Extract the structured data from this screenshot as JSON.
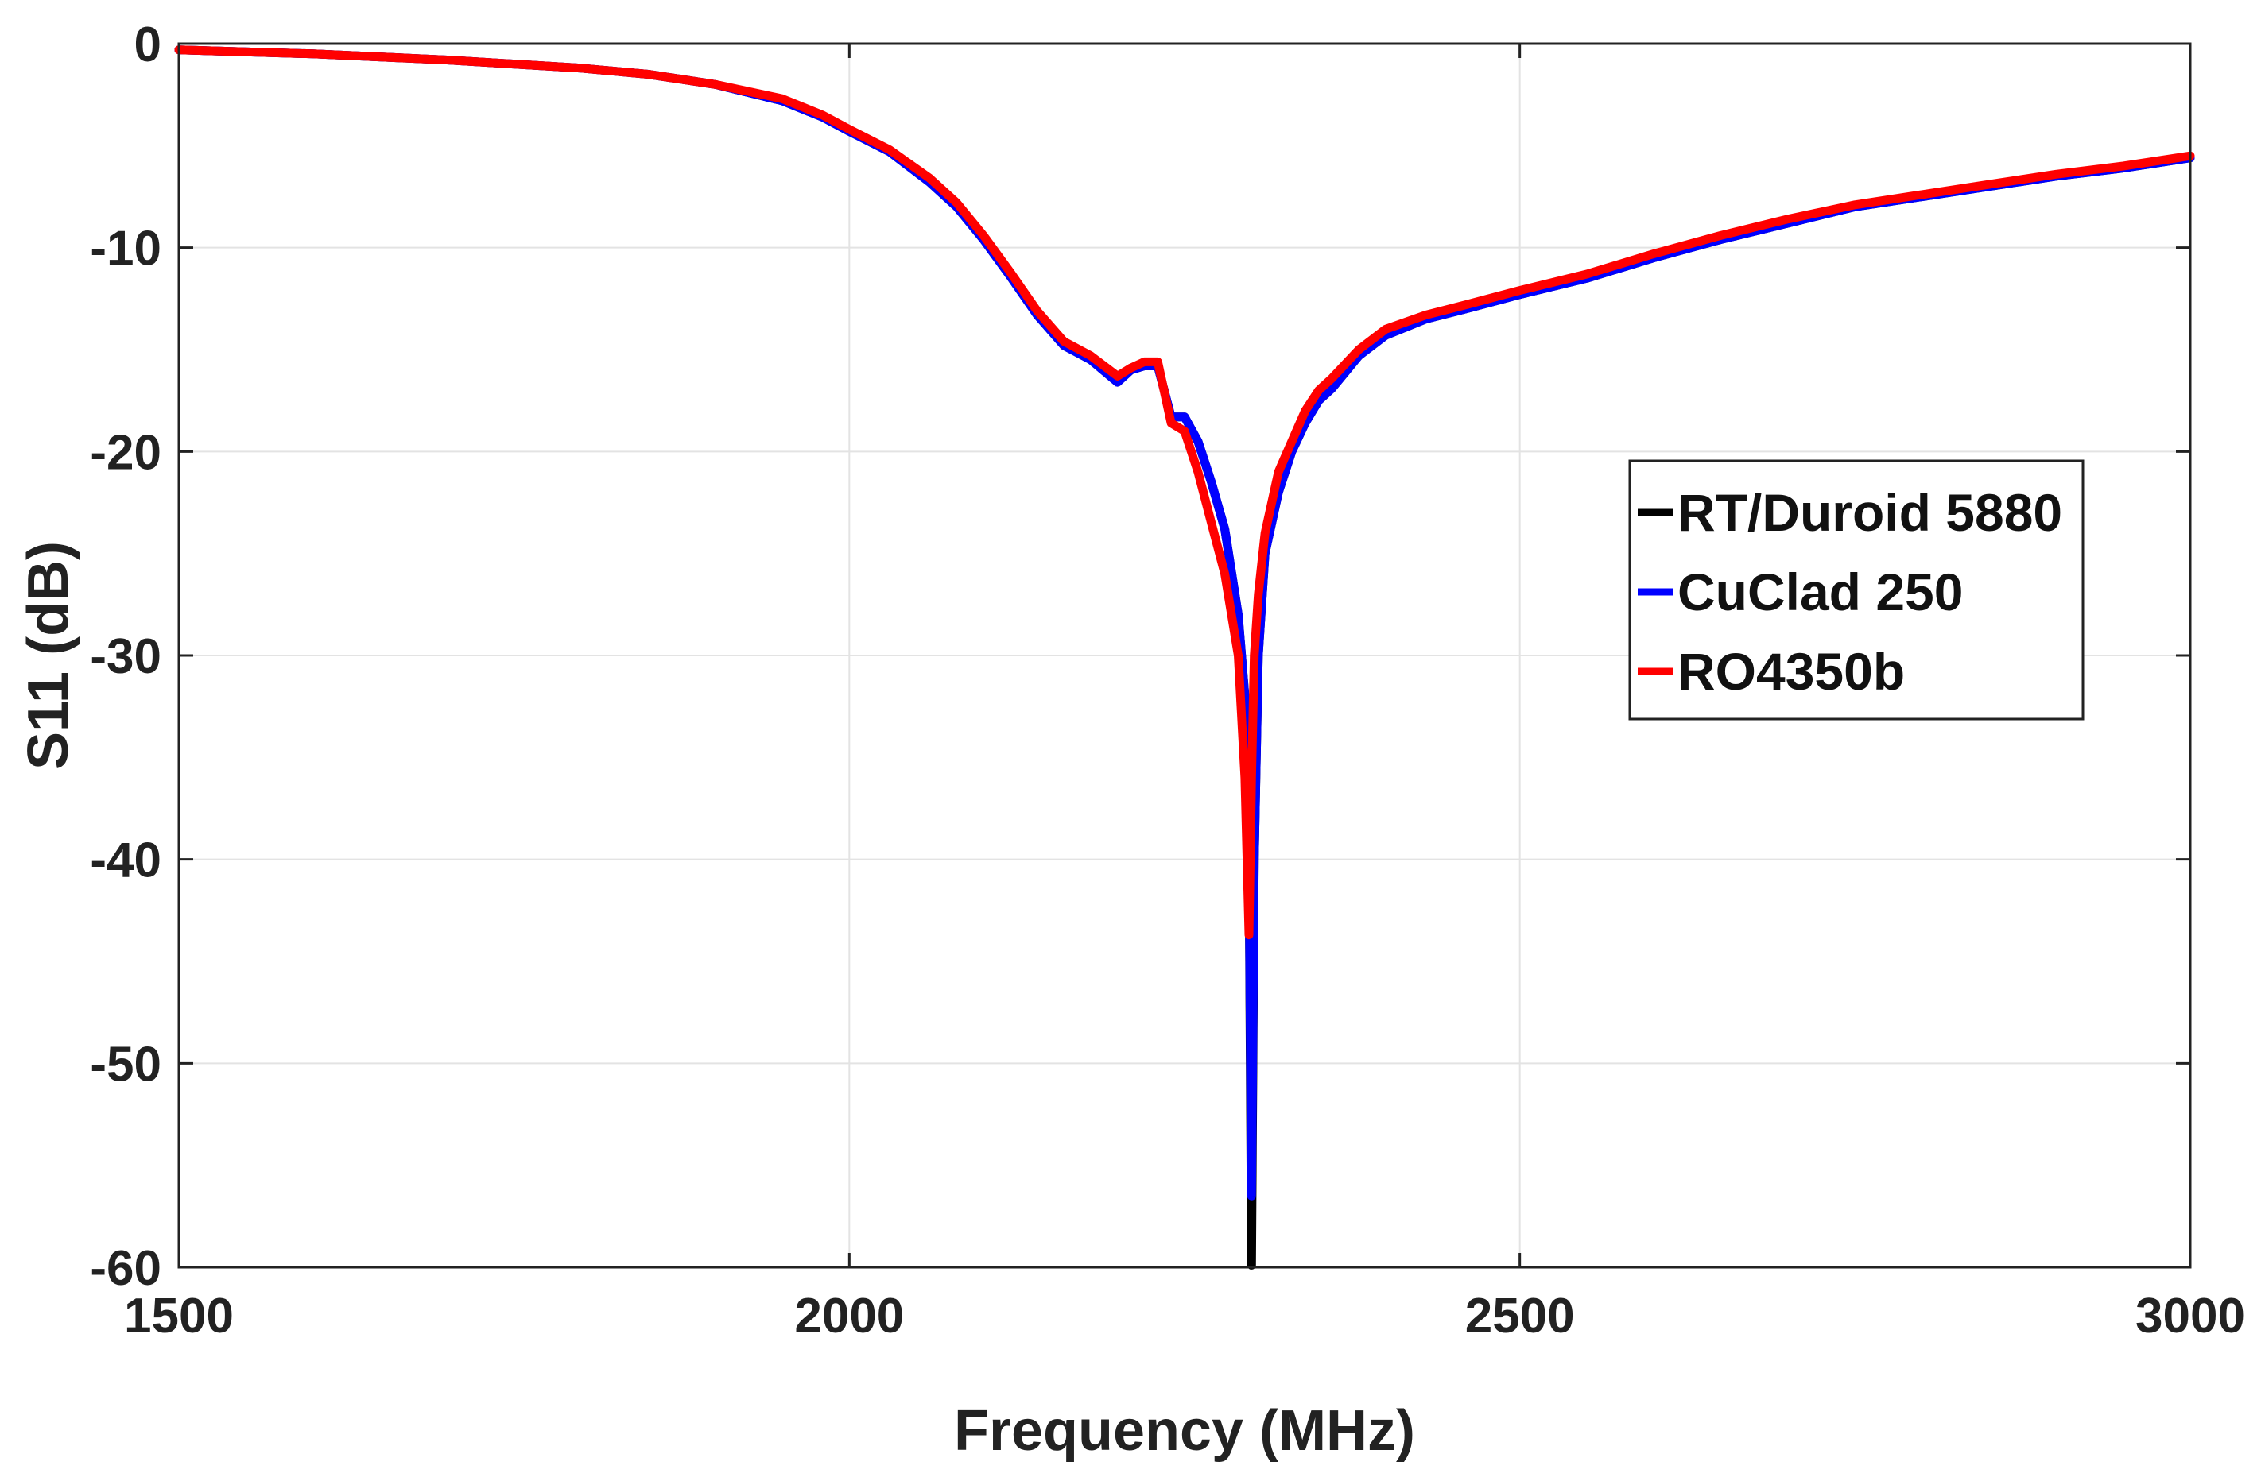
{
  "chart_data": {
    "type": "line",
    "title": "",
    "xlabel": "Frequency (MHz)",
    "ylabel": "S11 (dB)",
    "xlim": [
      1500,
      3000
    ],
    "ylim": [
      -60,
      0
    ],
    "xticks": [
      1500,
      2000,
      2500,
      3000
    ],
    "yticks": [
      0,
      -10,
      -20,
      -30,
      -40,
      -50,
      -60
    ],
    "xtick_labels": [
      "1500",
      "2000",
      "2500",
      "3000"
    ],
    "ytick_labels": [
      "0",
      "-10",
      "-20",
      "-30",
      "-40",
      "-50",
      "-60"
    ],
    "grid": true,
    "legend_position": "center-right",
    "series": [
      {
        "name": "RT/Duroid 5880",
        "color": "#000000",
        "x": [
          1500,
          1600,
          1700,
          1800,
          1850,
          1900,
          1950,
          1980,
          2000,
          2030,
          2060,
          2080,
          2100,
          2120,
          2140,
          2160,
          2180,
          2200,
          2210,
          2220,
          2230,
          2240,
          2250,
          2260,
          2270,
          2280,
          2290,
          2295,
          2298,
          2300,
          2302,
          2305,
          2310,
          2320,
          2330,
          2340,
          2350,
          2360,
          2380,
          2400,
          2430,
          2460,
          2500,
          2550,
          2600,
          2650,
          2700,
          2750,
          2800,
          2850,
          2900,
          2950,
          3000
        ],
        "y": [
          -0.3,
          -0.5,
          -0.8,
          -1.2,
          -1.5,
          -2.0,
          -2.8,
          -3.6,
          -4.3,
          -5.3,
          -6.8,
          -8.0,
          -9.6,
          -11.4,
          -13.3,
          -14.8,
          -15.5,
          -16.6,
          -16.0,
          -15.8,
          -15.8,
          -18.3,
          -18.3,
          -19.5,
          -21.5,
          -23.8,
          -28.0,
          -32.0,
          -40.0,
          -59.9,
          -40.0,
          -30.0,
          -25.0,
          -22.0,
          -20.0,
          -18.6,
          -17.5,
          -16.9,
          -15.3,
          -14.3,
          -13.5,
          -13.0,
          -12.3,
          -11.5,
          -10.5,
          -9.6,
          -8.8,
          -8.0,
          -7.5,
          -7.0,
          -6.5,
          -6.1,
          -5.6
        ]
      },
      {
        "name": "CuClad 250",
        "color": "#0000ff",
        "x": [
          1500,
          1600,
          1700,
          1800,
          1850,
          1900,
          1950,
          1980,
          2000,
          2030,
          2060,
          2080,
          2100,
          2120,
          2140,
          2160,
          2180,
          2200,
          2210,
          2220,
          2230,
          2240,
          2250,
          2260,
          2270,
          2280,
          2290,
          2295,
          2298,
          2300,
          2302,
          2305,
          2310,
          2320,
          2330,
          2340,
          2350,
          2360,
          2380,
          2400,
          2430,
          2460,
          2500,
          2550,
          2600,
          2650,
          2700,
          2750,
          2800,
          2850,
          2900,
          2950,
          3000
        ],
        "y": [
          -0.3,
          -0.5,
          -0.8,
          -1.2,
          -1.5,
          -2.0,
          -2.8,
          -3.6,
          -4.3,
          -5.3,
          -6.8,
          -8.0,
          -9.6,
          -11.4,
          -13.3,
          -14.8,
          -15.5,
          -16.6,
          -16.0,
          -15.8,
          -15.8,
          -18.3,
          -18.3,
          -19.5,
          -21.5,
          -23.8,
          -28.0,
          -32.0,
          -40.0,
          -56.5,
          -40.0,
          -30.0,
          -25.0,
          -22.0,
          -20.0,
          -18.6,
          -17.5,
          -16.9,
          -15.3,
          -14.3,
          -13.5,
          -13.0,
          -12.3,
          -11.5,
          -10.5,
          -9.6,
          -8.8,
          -8.0,
          -7.5,
          -7.0,
          -6.5,
          -6.1,
          -5.6
        ]
      },
      {
        "name": "RO4350b",
        "color": "#ff0000",
        "x": [
          1500,
          1600,
          1700,
          1800,
          1850,
          1900,
          1950,
          1980,
          2000,
          2030,
          2060,
          2080,
          2100,
          2120,
          2140,
          2160,
          2180,
          2200,
          2210,
          2220,
          2230,
          2240,
          2250,
          2260,
          2270,
          2280,
          2290,
          2295,
          2298,
          2300,
          2302,
          2305,
          2310,
          2320,
          2330,
          2340,
          2350,
          2360,
          2380,
          2400,
          2430,
          2460,
          2500,
          2550,
          2600,
          2650,
          2700,
          2750,
          2800,
          2850,
          2900,
          2950,
          3000
        ],
        "y": [
          -0.3,
          -0.5,
          -0.8,
          -1.2,
          -1.5,
          -2.0,
          -2.7,
          -3.5,
          -4.2,
          -5.2,
          -6.6,
          -7.8,
          -9.4,
          -11.2,
          -13.1,
          -14.6,
          -15.3,
          -16.3,
          -15.9,
          -15.6,
          -15.6,
          -18.6,
          -19.0,
          -21.0,
          -23.5,
          -26.0,
          -30.0,
          -36.0,
          -43.7,
          -36.0,
          -30.0,
          -27.0,
          -24.0,
          -21.0,
          -19.5,
          -18.0,
          -17.0,
          -16.4,
          -15.0,
          -14.0,
          -13.3,
          -12.8,
          -12.1,
          -11.3,
          -10.3,
          -9.4,
          -8.6,
          -7.9,
          -7.4,
          -6.9,
          -6.4,
          -6.0,
          -5.5
        ]
      }
    ]
  }
}
